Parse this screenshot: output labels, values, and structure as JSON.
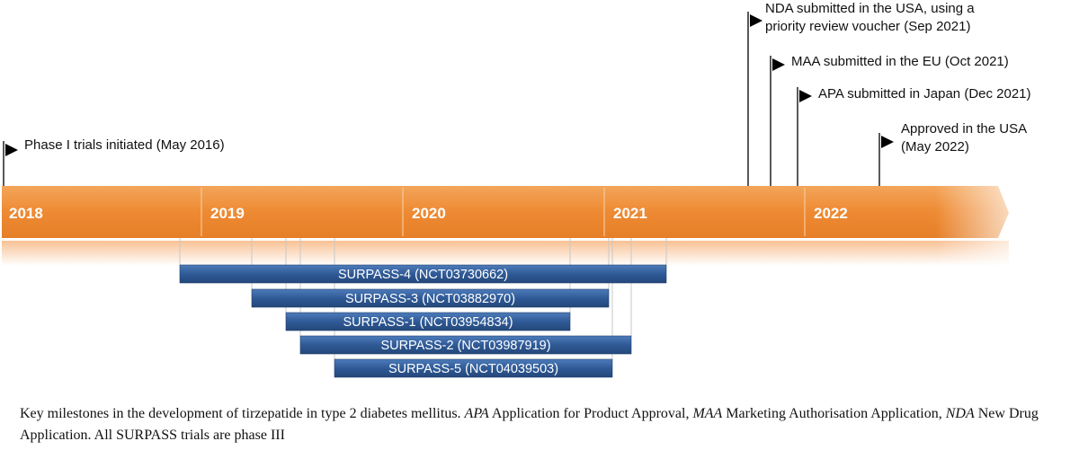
{
  "milestones": [
    {
      "id": "phase1",
      "text": "Phase I trials initiated (May 2016)"
    },
    {
      "id": "nda",
      "text": "NDA submitted in the USA, using a\npriority review voucher (Sep 2021)"
    },
    {
      "id": "maa",
      "text": "MAA submitted in the EU (Oct 2021)"
    },
    {
      "id": "apa",
      "text": "APA submitted in Japan (Dec 2021)"
    },
    {
      "id": "approved",
      "text": "Approved in the USA\n(May 2022)"
    }
  ],
  "years": [
    "2018",
    "2019",
    "2020",
    "2021",
    "2022"
  ],
  "trials": [
    {
      "label": "SURPASS-4 (NCT03730662)"
    },
    {
      "label": "SURPASS-3 (NCT03882970)"
    },
    {
      "label": "SURPASS-1 (NCT03954834)"
    },
    {
      "label": "SURPASS-2 (NCT03987919)"
    },
    {
      "label": "SURPASS-5 (NCT04039503)"
    }
  ],
  "caption": {
    "part1": "Key milestones in the development of tirzepatide in type 2 diabetes mellitus. ",
    "apa_abbr": "APA",
    "apa_def": " Application for Product Approval, ",
    "maa_abbr": "MAA",
    "maa_def": " Marketing Authorisation Application, ",
    "nda_abbr": "NDA",
    "nda_def": " New Drug Application. All SURPASS trials are phase III"
  },
  "colors": {
    "timeline_orange": "#F0923C",
    "timeline_light": "#F6B77A",
    "bar_blue": "#2F5A96",
    "bar_blue_light": "#4A77B4",
    "flag": "#000000"
  }
}
